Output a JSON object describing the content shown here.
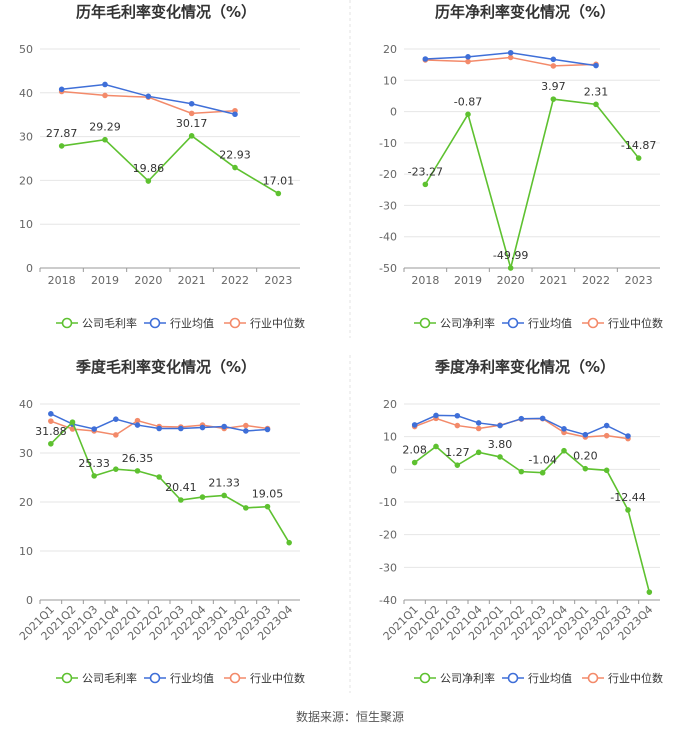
{
  "source": "数据来源：恒生聚源",
  "legend": {
    "company_gross": "公司毛利率",
    "company_net": "公司净利率",
    "industry_avg": "行业均值",
    "industry_median": "行业中位数"
  },
  "colors": {
    "company": "#5ec130",
    "industry_avg": "#3f6fd8",
    "industry_median": "#f38a6a",
    "grid": "#e6e6e6",
    "axis": "#999999"
  },
  "chart_data": [
    {
      "id": "annual-gross",
      "type": "line",
      "title": "历年毛利率变化情况（%）",
      "categories": [
        "2018",
        "2019",
        "2020",
        "2021",
        "2022",
        "2023"
      ],
      "ylim": [
        0,
        50
      ],
      "yticks": [
        0,
        10,
        20,
        30,
        40,
        50
      ],
      "rotate_x": false,
      "series": [
        {
          "name": "公司毛利率",
          "key": "company",
          "values": [
            27.87,
            29.29,
            19.86,
            30.17,
            22.93,
            17.01
          ],
          "labels": [
            "27.87",
            "29.29",
            "19.86",
            "30.17",
            "22.93",
            "17.01"
          ]
        },
        {
          "name": "行业均值",
          "key": "industry_avg",
          "values": [
            40.8,
            41.9,
            39.2,
            37.5,
            35.1,
            null
          ]
        },
        {
          "name": "行业中位数",
          "key": "industry_median",
          "values": [
            40.3,
            39.4,
            39.0,
            35.3,
            35.9,
            null
          ]
        }
      ]
    },
    {
      "id": "annual-net",
      "type": "line",
      "title": "历年净利率变化情况（%）",
      "categories": [
        "2018",
        "2019",
        "2020",
        "2021",
        "2022",
        "2023"
      ],
      "ylim": [
        -50,
        20
      ],
      "yticks": [
        -50,
        -40,
        -30,
        -20,
        -10,
        0,
        10,
        20
      ],
      "rotate_x": false,
      "series": [
        {
          "name": "公司净利率",
          "key": "company",
          "values": [
            -23.27,
            -0.87,
            -49.99,
            3.97,
            2.31,
            -14.87
          ],
          "labels": [
            "-23.27",
            "-0.87",
            "-49.99",
            "3.97",
            "2.31",
            "-14.87"
          ]
        },
        {
          "name": "行业均值",
          "key": "industry_avg",
          "values": [
            16.8,
            17.5,
            18.8,
            16.7,
            14.7,
            null
          ]
        },
        {
          "name": "行业中位数",
          "key": "industry_median",
          "values": [
            16.5,
            16.0,
            17.3,
            14.6,
            15.1,
            null
          ]
        }
      ]
    },
    {
      "id": "quarterly-gross",
      "type": "line",
      "title": "季度毛利率变化情况（%）",
      "categories": [
        "2021Q1",
        "2021Q2",
        "2021Q3",
        "2021Q4",
        "2022Q1",
        "2022Q2",
        "2022Q3",
        "2022Q4",
        "2023Q1",
        "2023Q2",
        "2023Q3",
        "2023Q4"
      ],
      "ylim": [
        0,
        40
      ],
      "yticks": [
        0,
        10,
        20,
        30,
        40
      ],
      "rotate_x": true,
      "series": [
        {
          "name": "公司毛利率",
          "key": "company",
          "values": [
            31.88,
            36.3,
            25.33,
            26.7,
            26.35,
            25.1,
            20.41,
            21.0,
            21.33,
            18.8,
            19.05,
            11.7
          ],
          "labels": [
            "31.88",
            "",
            "25.33",
            "",
            "26.35",
            "",
            "20.41",
            "",
            "21.33",
            "",
            "19.05",
            ""
          ]
        },
        {
          "name": "行业均值",
          "key": "industry_avg",
          "values": [
            38.0,
            35.9,
            34.9,
            36.9,
            35.7,
            35.0,
            35.0,
            35.2,
            35.4,
            34.5,
            34.8,
            null
          ]
        },
        {
          "name": "行业中位数",
          "key": "industry_median",
          "values": [
            36.5,
            34.9,
            34.5,
            33.7,
            36.6,
            35.4,
            35.3,
            35.7,
            35.0,
            35.6,
            35.0,
            null
          ]
        }
      ]
    },
    {
      "id": "quarterly-net",
      "type": "line",
      "title": "季度净利率变化情况（%）",
      "categories": [
        "2021Q1",
        "2021Q2",
        "2021Q3",
        "2021Q4",
        "2022Q1",
        "2022Q2",
        "2022Q3",
        "2022Q4",
        "2023Q1",
        "2023Q2",
        "2023Q3",
        "2023Q4"
      ],
      "ylim": [
        -40,
        20
      ],
      "yticks": [
        -40,
        -30,
        -20,
        -10,
        0,
        10,
        20
      ],
      "rotate_x": true,
      "series": [
        {
          "name": "公司净利率",
          "key": "company",
          "values": [
            2.08,
            7.0,
            1.27,
            5.2,
            3.8,
            -0.7,
            -1.04,
            5.7,
            0.2,
            -0.3,
            -12.44,
            -37.6
          ],
          "labels": [
            "2.08",
            "",
            "1.27",
            "",
            "3.80",
            "",
            "-1.04",
            "",
            "0.20",
            "",
            "-12.44",
            ""
          ]
        },
        {
          "name": "行业均值",
          "key": "industry_avg",
          "values": [
            13.6,
            16.5,
            16.4,
            14.2,
            13.4,
            15.5,
            15.6,
            12.4,
            10.6,
            13.4,
            10.2,
            null
          ]
        },
        {
          "name": "行业中位数",
          "key": "industry_median",
          "values": [
            13.1,
            15.6,
            13.4,
            12.5,
            13.5,
            15.4,
            15.5,
            11.3,
            9.9,
            10.3,
            9.4,
            null
          ]
        }
      ]
    }
  ]
}
